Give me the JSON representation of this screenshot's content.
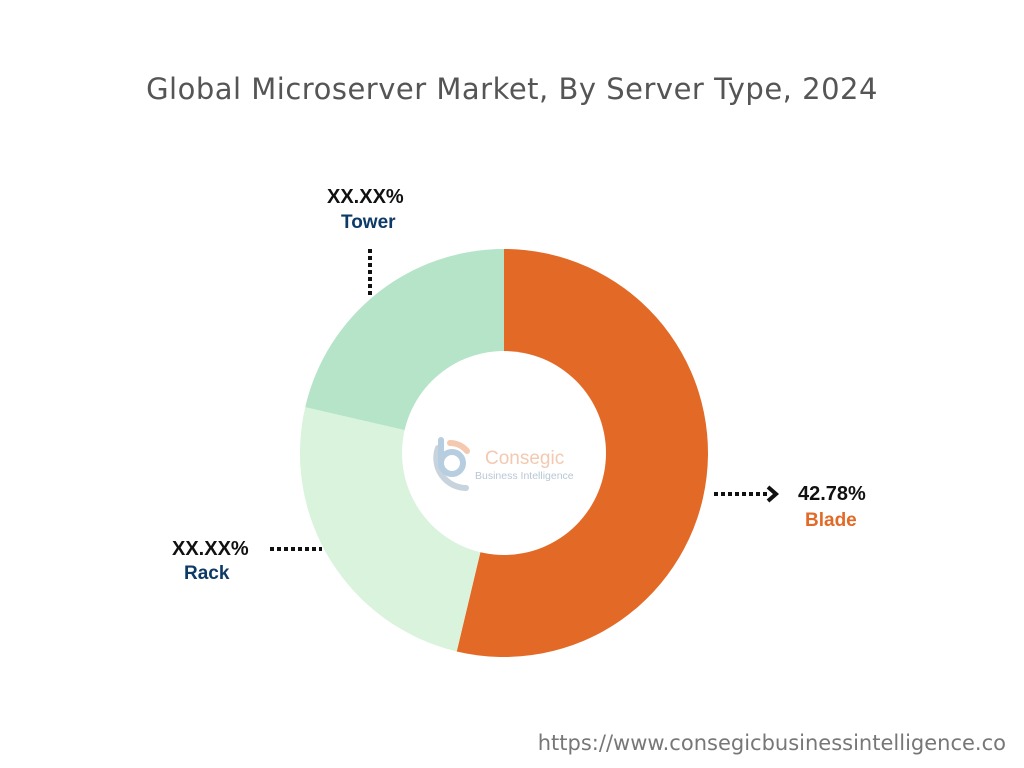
{
  "chart_data": {
    "type": "pie",
    "title": "Global Microserver Market, By Server Type, 2024",
    "donut": true,
    "categories": [
      "Blade",
      "Rack",
      "Tower"
    ],
    "labels": [
      "42.78%",
      "XX.XX%",
      "XX.XX%"
    ],
    "values": [
      42.78,
      null,
      null
    ],
    "colors": [
      "#e36a26",
      "#d9f3dd",
      "#b5e4c8"
    ],
    "label_colors": [
      "#e36a26",
      "#0d3a66",
      "#0d3a66"
    ]
  },
  "logo": {
    "name": "Consegic",
    "tagline": "Business Intelligence"
  },
  "footer": {
    "url": "https://www.consegicbusinessintelligence.co"
  }
}
